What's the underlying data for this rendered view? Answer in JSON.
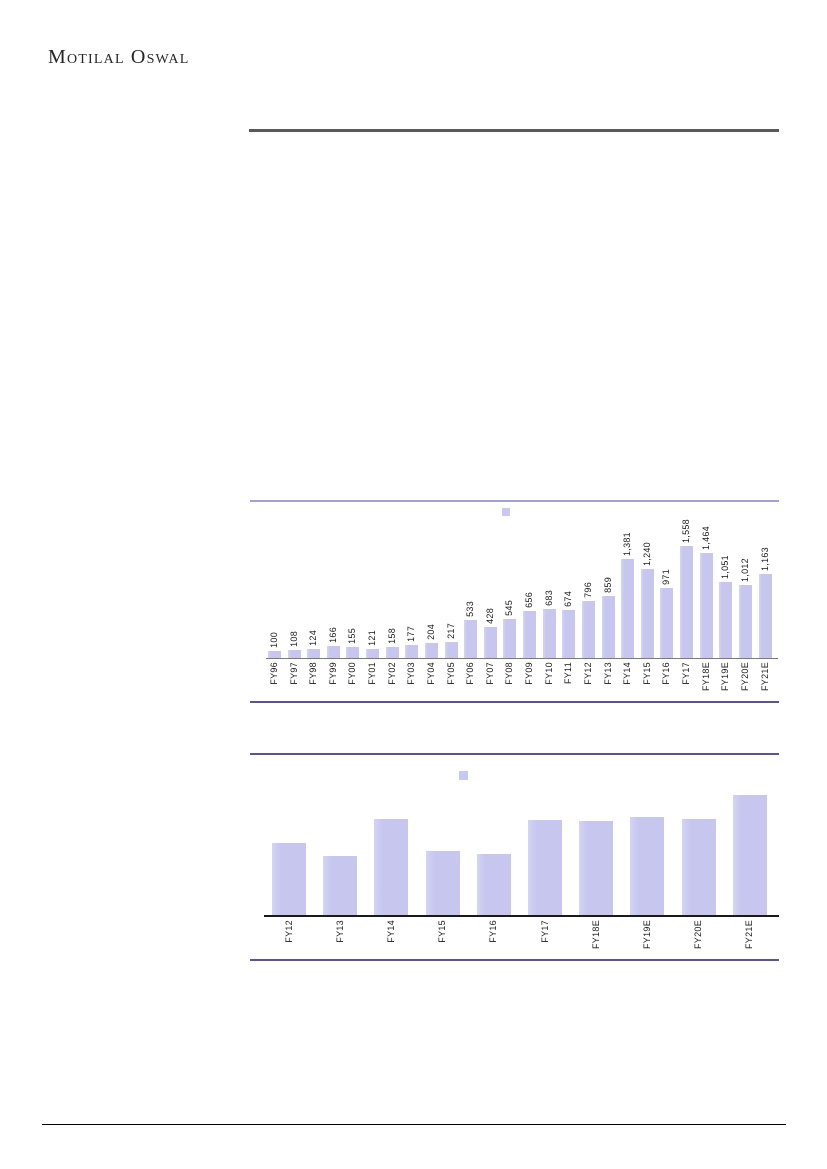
{
  "brand": {
    "logo_text": "Motilal Oswal"
  },
  "colors": {
    "bar_fill": "#c8c8f0",
    "chart1_top_rule": "#a49ed6",
    "chart_dark_rule": "#5a53a5",
    "header_rule": "#58595b",
    "footer_rule": "#000000"
  },
  "chart_data": [
    {
      "type": "bar",
      "title": "",
      "xlabel": "",
      "ylabel": "",
      "grid": false,
      "y_axis_visible": false,
      "legend_position": "top-center",
      "legend_label": "",
      "bar_color": "#c8c8f0",
      "ylim": [
        0,
        1700
      ],
      "categories": [
        "FY96",
        "FY97",
        "FY98",
        "FY99",
        "FY00",
        "FY01",
        "FY02",
        "FY03",
        "FY04",
        "FY05",
        "FY06",
        "FY07",
        "FY08",
        "FY09",
        "FY10",
        "FY11",
        "FY12",
        "FY13",
        "FY14",
        "FY15",
        "FY16",
        "FY17",
        "FY18E",
        "FY19E",
        "FY20E",
        "FY21E"
      ],
      "values": [
        100,
        108,
        124,
        166,
        155,
        121,
        158,
        177,
        204,
        217,
        533,
        428,
        545,
        656,
        683,
        674,
        796,
        859,
        1381,
        1240,
        971,
        1558,
        1464,
        1051,
        1012,
        1163
      ],
      "data_labels": [
        "100",
        "108",
        "124",
        "166",
        "155",
        "121",
        "158",
        "177",
        "204",
        "217",
        "533",
        "428",
        "545",
        "656",
        "683",
        "674",
        "796",
        "859",
        "1,381",
        "1,240",
        "971",
        "1,558",
        "1,464",
        "1,051",
        "1,012",
        "1,163"
      ],
      "show_data_labels": true,
      "data_label_rotation_deg": 90,
      "category_label_rotation_deg": 90
    },
    {
      "type": "bar",
      "title": "",
      "xlabel": "",
      "ylabel": "",
      "grid": false,
      "y_axis_visible": false,
      "legend_position": "top-center",
      "legend_label": "",
      "bar_color": "#c8c8f0",
      "categories": [
        "FY12",
        "FY13",
        "FY14",
        "FY15",
        "FY16",
        "FY17",
        "FY18E",
        "FY19E",
        "FY20E",
        "FY21E"
      ],
      "values": [
        60,
        49,
        80,
        53,
        51,
        79,
        78,
        82,
        80,
        100
      ],
      "values_note": "bars unlabeled in source; values estimated relative to tallest bar (FY21E = 100)",
      "show_data_labels": false,
      "category_label_rotation_deg": 90
    }
  ]
}
